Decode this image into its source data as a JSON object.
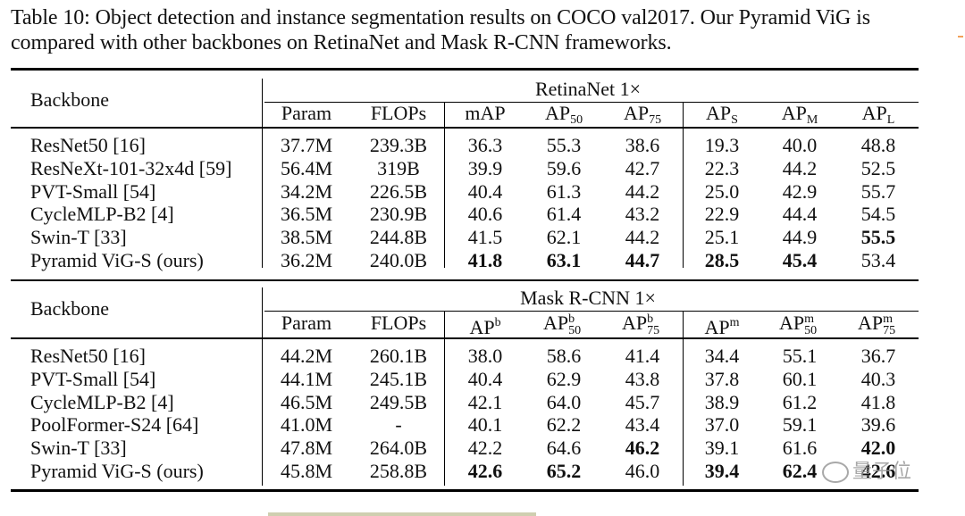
{
  "caption": {
    "line1": "Table 10: Object detection and instance segmentation results on COCO val2017. Our Pyramid ViG is",
    "line2": "compared with other backbones on RetinaNet and Mask R-CNN frameworks."
  },
  "section1": {
    "backbone_header": "Backbone",
    "framework": "RetinaNet 1×",
    "columns": [
      "Param",
      "FLOPs",
      "mAP",
      "AP50",
      "AP75",
      "APS",
      "APM",
      "APL"
    ],
    "rows": [
      {
        "name": "ResNet50 [16]",
        "values": [
          "37.7M",
          "239.3B",
          "36.3",
          "55.3",
          "38.6",
          "19.3",
          "40.0",
          "48.8"
        ],
        "bold": []
      },
      {
        "name": "ResNeXt-101-32x4d [59]",
        "values": [
          "56.4M",
          "319B",
          "39.9",
          "59.6",
          "42.7",
          "22.3",
          "44.2",
          "52.5"
        ],
        "bold": []
      },
      {
        "name": "PVT-Small [54]",
        "values": [
          "34.2M",
          "226.5B",
          "40.4",
          "61.3",
          "44.2",
          "25.0",
          "42.9",
          "55.7"
        ],
        "bold": []
      },
      {
        "name": "CycleMLP-B2 [4]",
        "values": [
          "36.5M",
          "230.9B",
          "40.6",
          "61.4",
          "43.2",
          "22.9",
          "44.4",
          "54.5"
        ],
        "bold": []
      },
      {
        "name": "Swin-T [33]",
        "values": [
          "38.5M",
          "244.8B",
          "41.5",
          "62.1",
          "44.2",
          "25.1",
          "44.9",
          "55.5"
        ],
        "bold": [
          7
        ]
      },
      {
        "name": "Pyramid ViG-S (ours)",
        "values": [
          "36.2M",
          "240.0B",
          "41.8",
          "63.1",
          "44.7",
          "28.5",
          "45.4",
          "53.4"
        ],
        "bold": [
          2,
          3,
          4,
          5,
          6
        ]
      }
    ]
  },
  "section2": {
    "backbone_header": "Backbone",
    "framework": "Mask R-CNN 1×",
    "rows": [
      {
        "name": "ResNet50 [16]",
        "values": [
          "44.2M",
          "260.1B",
          "38.0",
          "58.6",
          "41.4",
          "34.4",
          "55.1",
          "36.7"
        ],
        "bold": []
      },
      {
        "name": "PVT-Small [54]",
        "values": [
          "44.1M",
          "245.1B",
          "40.4",
          "62.9",
          "43.8",
          "37.8",
          "60.1",
          "40.3"
        ],
        "bold": []
      },
      {
        "name": "CycleMLP-B2 [4]",
        "values": [
          "46.5M",
          "249.5B",
          "42.1",
          "64.0",
          "45.7",
          "38.9",
          "61.2",
          "41.8"
        ],
        "bold": []
      },
      {
        "name": "PoolFormer-S24 [64]",
        "values": [
          "41.0M",
          "-",
          "40.1",
          "62.2",
          "43.4",
          "37.0",
          "59.1",
          "39.6"
        ],
        "bold": []
      },
      {
        "name": "Swin-T [33]",
        "values": [
          "47.8M",
          "264.0B",
          "42.2",
          "64.6",
          "46.2",
          "39.1",
          "61.6",
          "42.0"
        ],
        "bold": [
          4,
          7
        ]
      },
      {
        "name": "Pyramid ViG-S (ours)",
        "values": [
          "45.8M",
          "258.8B",
          "42.6",
          "65.2",
          "46.0",
          "39.4",
          "62.4",
          "42.6"
        ],
        "bold": [
          2,
          3,
          5,
          6,
          7
        ]
      }
    ]
  },
  "watermark": "量子位"
}
